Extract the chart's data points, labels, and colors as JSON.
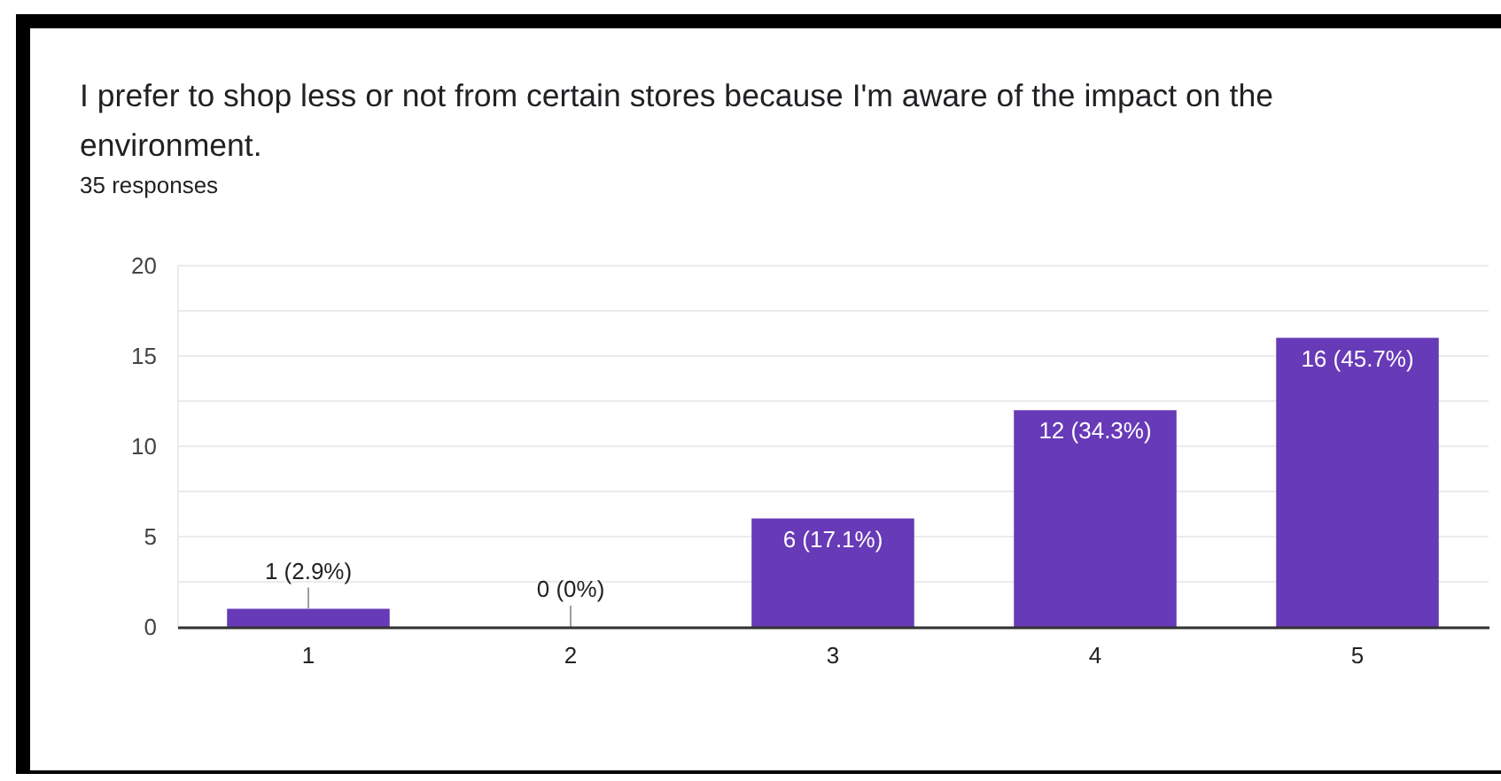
{
  "chart_data": {
    "type": "bar",
    "title": "I prefer to shop less or not from certain stores because I'm aware of the impact on the environment.",
    "subtitle": "35 responses",
    "categories": [
      "1",
      "2",
      "3",
      "4",
      "5"
    ],
    "values": [
      1,
      0,
      6,
      12,
      16
    ],
    "color": "#673ab7",
    "value_labels": [
      "1 (2.9%)",
      "0 (0%)",
      "6 (17.1%)",
      "12 (34.3%)",
      "16 (45.7%)"
    ],
    "ylim": [
      0,
      20
    ],
    "yticks": [
      0,
      {
        "value": 2.5,
        "label": null
      },
      5,
      {
        "value": 7.5,
        "label": null
      },
      10,
      {
        "value": 12.5,
        "label": null
      },
      15,
      {
        "value": 17.5,
        "label": null
      },
      20
    ],
    "grid": true
  }
}
